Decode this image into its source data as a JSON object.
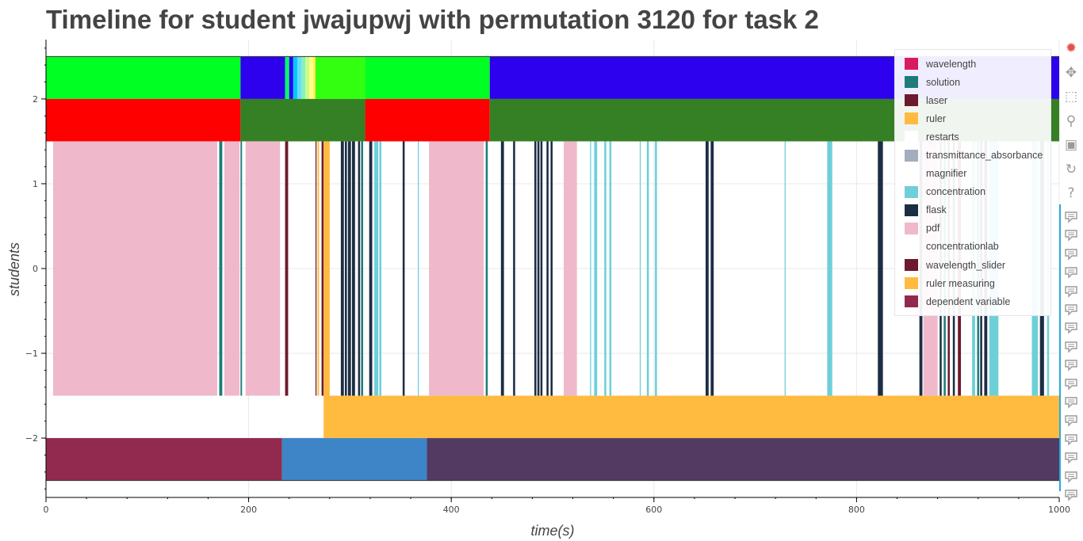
{
  "chart_data": {
    "type": "timeline",
    "title": "Timeline for student jwajupwj with permutation 3120 for task 2",
    "xlabel": "time(s)",
    "ylabel": "students",
    "xlim": [
      0,
      1000
    ],
    "ylim": [
      -2.7,
      2.7
    ],
    "x_ticks": [
      0,
      200,
      400,
      600,
      800,
      1000
    ],
    "x_tick_labels": [
      "0",
      "200",
      "400",
      "600",
      "800",
      "1000"
    ],
    "y_ticks": [
      2,
      1,
      0,
      -1,
      -2
    ],
    "y_tick_labels": [
      "2",
      "1",
      "0",
      "−1",
      "−2"
    ],
    "grid": true,
    "legend_position": "top-right",
    "legend": [
      {
        "label": "wavelength",
        "color": "#D81B60"
      },
      {
        "label": "solution",
        "color": "#1E7B7B"
      },
      {
        "label": "laser",
        "color": "#6D1A2E"
      },
      {
        "label": "ruler",
        "color": "#FFBB40"
      },
      {
        "label": "restarts",
        "color": "#FFFFFF"
      },
      {
        "label": "transmittance_absorbance",
        "color": "#A3ADBD"
      },
      {
        "label": "magnifier",
        "color": "#FFFFFF"
      },
      {
        "label": "concentration",
        "color": "#6FCFD9"
      },
      {
        "label": "flask",
        "color": "#1C2E44"
      },
      {
        "label": "pdf",
        "color": "#EFB8CB"
      },
      {
        "label": "concentrationlab",
        "color": "#FFFFFF"
      },
      {
        "label": "wavelength_slider",
        "color": "#6D1A2E"
      },
      {
        "label": "ruler measuring",
        "color": "#FFBB40"
      },
      {
        "label": "dependent variable",
        "color": "#922A50"
      }
    ],
    "rows": [
      {
        "y0": 2.0,
        "y1": 2.5,
        "segments": [
          {
            "x0": 0,
            "x1": 192,
            "color": "#00FF22"
          },
          {
            "x0": 192,
            "x1": 236,
            "color": "#2D00EE"
          },
          {
            "x0": 236,
            "x1": 240,
            "color": "#00FF66"
          },
          {
            "x0": 240,
            "x1": 244,
            "color": "#2D00EE"
          },
          {
            "x0": 244,
            "x1": 248,
            "color": "#00C8FF"
          },
          {
            "x0": 248,
            "x1": 252,
            "color": "#66DDFF"
          },
          {
            "x0": 252,
            "x1": 256,
            "color": "#88F0C0"
          },
          {
            "x0": 256,
            "x1": 260,
            "color": "#C8FF80"
          },
          {
            "x0": 260,
            "x1": 264,
            "color": "#FFFF88"
          },
          {
            "x0": 264,
            "x1": 266,
            "color": "#FFEE44"
          },
          {
            "x0": 266,
            "x1": 315,
            "color": "#33FF11"
          },
          {
            "x0": 315,
            "x1": 438,
            "color": "#00FF22"
          },
          {
            "x0": 438,
            "x1": 1000,
            "color": "#2D00EE"
          }
        ]
      },
      {
        "y0": 1.5,
        "y1": 2.0,
        "segments": [
          {
            "x0": 0,
            "x1": 192,
            "color": "#FF0000"
          },
          {
            "x0": 192,
            "x1": 315,
            "color": "#358024"
          },
          {
            "x0": 315,
            "x1": 438,
            "color": "#FF0000"
          },
          {
            "x0": 438,
            "x1": 1000,
            "color": "#358024"
          }
        ]
      },
      {
        "y0": -1.5,
        "y1": 1.5,
        "segments": [
          {
            "x0": 7,
            "x1": 169,
            "color": "#EFB8CB"
          },
          {
            "x0": 171,
            "x1": 174,
            "color": "#1E7B7B"
          },
          {
            "x0": 176,
            "x1": 191,
            "color": "#EFB8CB"
          },
          {
            "x0": 192,
            "x1": 193.5,
            "color": "#1E7B7B"
          },
          {
            "x0": 197,
            "x1": 231,
            "color": "#EFB8CB"
          },
          {
            "x0": 236,
            "x1": 239,
            "color": "#6D1A2E"
          },
          {
            "x0": 266,
            "x1": 267,
            "color": "#6D1A2E"
          },
          {
            "x0": 268,
            "x1": 269.5,
            "color": "#FFBB40"
          },
          {
            "x0": 272,
            "x1": 274,
            "color": "#6D1A2E"
          },
          {
            "x0": 274,
            "x1": 280,
            "color": "#FFBB40"
          },
          {
            "x0": 291,
            "x1": 294,
            "color": "#1C2E44"
          },
          {
            "x0": 295,
            "x1": 297,
            "color": "#1C2E44"
          },
          {
            "x0": 298,
            "x1": 301,
            "color": "#1C2E44"
          },
          {
            "x0": 302,
            "x1": 305,
            "color": "#1C2E44"
          },
          {
            "x0": 308,
            "x1": 310,
            "color": "#1C2E44"
          },
          {
            "x0": 311,
            "x1": 313,
            "color": "#1E7B7B"
          },
          {
            "x0": 319,
            "x1": 322,
            "color": "#1C2E44"
          },
          {
            "x0": 324,
            "x1": 328,
            "color": "#6FCFD9"
          },
          {
            "x0": 329,
            "x1": 331,
            "color": "#6FCFD9"
          },
          {
            "x0": 352,
            "x1": 354,
            "color": "#1C2E44"
          },
          {
            "x0": 367,
            "x1": 368,
            "color": "#6FCFD9"
          },
          {
            "x0": 378,
            "x1": 432,
            "color": "#EFB8CB"
          },
          {
            "x0": 434,
            "x1": 436,
            "color": "#1E7B7B"
          },
          {
            "x0": 449,
            "x1": 452,
            "color": "#1C2E44"
          },
          {
            "x0": 461,
            "x1": 463,
            "color": "#1C2E44"
          },
          {
            "x0": 482,
            "x1": 484,
            "color": "#1C2E44"
          },
          {
            "x0": 485,
            "x1": 487,
            "color": "#1C2E44"
          },
          {
            "x0": 488,
            "x1": 490,
            "color": "#1C2E44"
          },
          {
            "x0": 494,
            "x1": 496,
            "color": "#1C2E44"
          },
          {
            "x0": 498,
            "x1": 500,
            "color": "#1C2E44"
          },
          {
            "x0": 511,
            "x1": 524,
            "color": "#EFB8CB"
          },
          {
            "x0": 537,
            "x1": 538,
            "color": "#6FCFD9"
          },
          {
            "x0": 541,
            "x1": 544,
            "color": "#6FCFD9"
          },
          {
            "x0": 551,
            "x1": 553,
            "color": "#6FCFD9"
          },
          {
            "x0": 556,
            "x1": 558,
            "color": "#6FCFD9"
          },
          {
            "x0": 586,
            "x1": 587,
            "color": "#6FCFD9"
          },
          {
            "x0": 593,
            "x1": 595,
            "color": "#6FCFD9"
          },
          {
            "x0": 601,
            "x1": 603,
            "color": "#6FCFD9"
          },
          {
            "x0": 651,
            "x1": 654,
            "color": "#1C2E44"
          },
          {
            "x0": 656,
            "x1": 659,
            "color": "#1C2E44"
          },
          {
            "x0": 729,
            "x1": 730,
            "color": "#6FCFD9"
          },
          {
            "x0": 771,
            "x1": 776,
            "color": "#6FCFD9"
          },
          {
            "x0": 821,
            "x1": 826,
            "color": "#1C2E44"
          },
          {
            "x0": 862,
            "x1": 865,
            "color": "#1C2E44"
          },
          {
            "x0": 866,
            "x1": 880,
            "color": "#EFB8CB"
          },
          {
            "x0": 882,
            "x1": 884,
            "color": "#1C2E44"
          },
          {
            "x0": 886,
            "x1": 888,
            "color": "#1E7B7B"
          },
          {
            "x0": 890,
            "x1": 892,
            "color": "#6D1A2E"
          },
          {
            "x0": 895,
            "x1": 897,
            "color": "#1C2E44"
          },
          {
            "x0": 900,
            "x1": 903,
            "color": "#6D1A2E"
          },
          {
            "x0": 914,
            "x1": 917,
            "color": "#6FCFD9"
          },
          {
            "x0": 919,
            "x1": 921,
            "color": "#1E7B7B"
          },
          {
            "x0": 922,
            "x1": 924,
            "color": "#1C2E44"
          },
          {
            "x0": 926,
            "x1": 929,
            "color": "#1C2E44"
          },
          {
            "x0": 931,
            "x1": 940,
            "color": "#6FCFD9"
          },
          {
            "x0": 973,
            "x1": 979,
            "color": "#6FCFD9"
          },
          {
            "x0": 981,
            "x1": 985,
            "color": "#1C2E44"
          },
          {
            "x0": 988,
            "x1": 990,
            "color": "#6FCFD9"
          }
        ]
      },
      {
        "y0": -2.0,
        "y1": -1.5,
        "segments": [
          {
            "x0": 274,
            "x1": 1000,
            "color": "#FFBB40"
          }
        ]
      },
      {
        "y0": -2.5,
        "y1": -2.0,
        "segments": [
          {
            "x0": 0,
            "x1": 233,
            "color": "#922A50"
          },
          {
            "x0": 233,
            "x1": 376,
            "color": "#3D85C6"
          },
          {
            "x0": 376,
            "x1": 1000,
            "color": "#533A63"
          }
        ]
      }
    ]
  },
  "toolbar": {
    "tools": [
      {
        "name": "bokeh-logo-icon",
        "glyph": "✹"
      },
      {
        "name": "pan-icon",
        "glyph": "✥"
      },
      {
        "name": "box-zoom-icon",
        "glyph": "⬚"
      },
      {
        "name": "wheel-zoom-icon",
        "glyph": "⚲"
      },
      {
        "name": "save-icon",
        "glyph": "▣"
      },
      {
        "name": "reset-icon",
        "glyph": "↻"
      },
      {
        "name": "help-icon",
        "glyph": "?"
      }
    ],
    "hover_tool_count": 16,
    "more_label": "⋯"
  }
}
